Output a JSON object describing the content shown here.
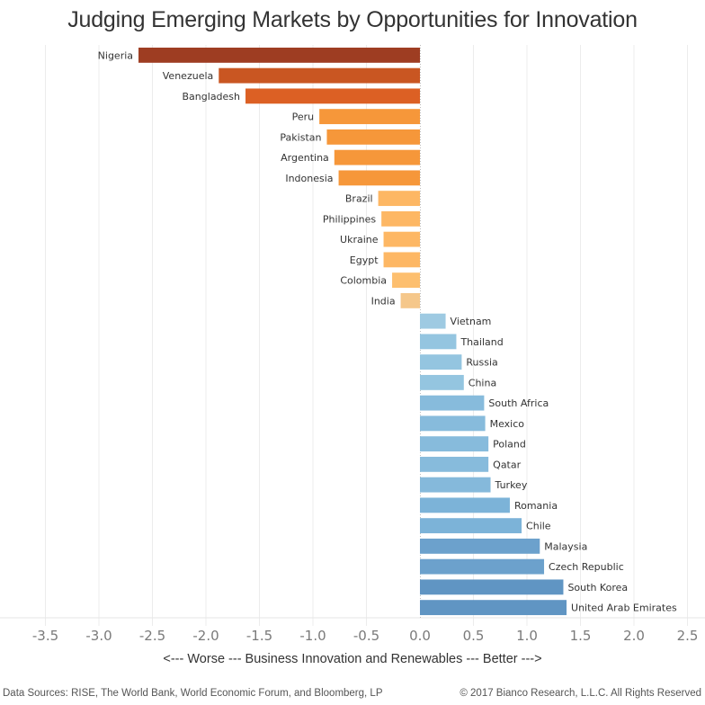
{
  "chart_data": {
    "type": "bar",
    "orientation": "horizontal",
    "title": "Judging Emerging Markets by Opportunities for Innovation",
    "xlabel": "<--- Worse --- Business Innovation and Renewables --- Better --->",
    "ylabel": "",
    "xlim": [
      -3.85,
      2.65
    ],
    "xticks": [
      -3.5,
      -3.0,
      -2.5,
      -2.0,
      -1.5,
      -1.0,
      -0.5,
      0.0,
      0.5,
      1.0,
      1.5,
      2.0,
      2.5
    ],
    "xtick_labels": [
      "-3.5",
      "-3.0",
      "-2.5",
      "-2.0",
      "-1.5",
      "-1.0",
      "-0.5",
      "0.0",
      "0.5",
      "1.0",
      "1.5",
      "2.0",
      "2.5"
    ],
    "grid": true,
    "categories": [
      "Nigeria",
      "Venezuela",
      "Bangladesh",
      "Peru",
      "Pakistan",
      "Argentina",
      "Indonesia",
      "Brazil",
      "Philippines",
      "Ukraine",
      "Egypt",
      "Colombia",
      "India",
      "Vietnam",
      "Thailand",
      "Russia",
      "China",
      "South Africa",
      "Mexico",
      "Poland",
      "Qatar",
      "Turkey",
      "Romania",
      "Chile",
      "Malaysia",
      "Czech Republic",
      "South Korea",
      "United Arab Emirates"
    ],
    "values": [
      -2.63,
      -1.88,
      -1.63,
      -0.94,
      -0.87,
      -0.8,
      -0.76,
      -0.39,
      -0.36,
      -0.34,
      -0.34,
      -0.26,
      -0.18,
      0.24,
      0.34,
      0.39,
      0.41,
      0.6,
      0.61,
      0.64,
      0.64,
      0.66,
      0.84,
      0.95,
      1.12,
      1.16,
      1.34,
      1.37
    ],
    "colors": [
      "#9e3d22",
      "#c95622",
      "#dc6024",
      "#f6973a",
      "#f6973a",
      "#f6973a",
      "#f6973a",
      "#fdb764",
      "#fdb764",
      "#fdb764",
      "#fdb764",
      "#fdbf6f",
      "#f5c78a",
      "#9ecae2",
      "#94c5e0",
      "#94c5e0",
      "#94c5e0",
      "#87bbdc",
      "#87bbdc",
      "#87bbdc",
      "#87bbdc",
      "#85b9db",
      "#7cb3d8",
      "#7cb3d8",
      "#6ca1cc",
      "#6ca1cc",
      "#6095c3",
      "#6095c3"
    ]
  },
  "footer": {
    "source": "Data Sources: RISE, The World Bank, World Economic Forum, and Bloomberg, LP",
    "copyright": "© 2017 Bianco Research, L.L.C. All Rights Reserved"
  }
}
